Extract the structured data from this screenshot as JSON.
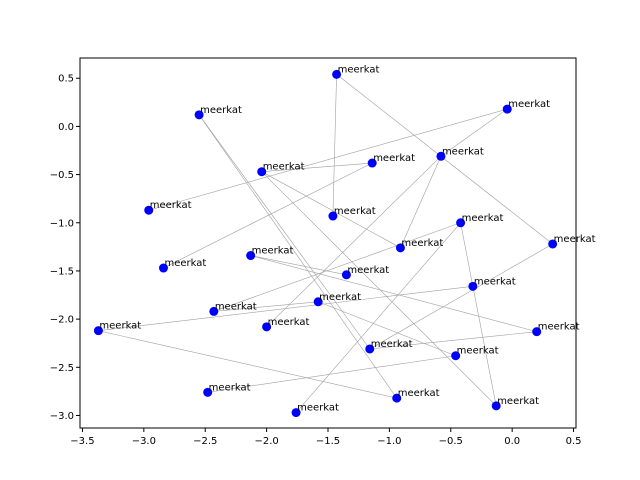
{
  "chart_data": {
    "type": "scatter",
    "title": "",
    "xlabel": "",
    "ylabel": "",
    "xlim": [
      -3.52,
      0.52
    ],
    "ylim": [
      -3.13,
      0.71
    ],
    "grid": false,
    "xticks": [
      -3.5,
      -3.0,
      -2.5,
      -2.0,
      -1.5,
      -1.0,
      -0.5,
      0.0,
      0.5
    ],
    "yticks": [
      -3.0,
      -2.5,
      -2.0,
      -1.5,
      -1.0,
      -0.5,
      0.0,
      0.5
    ],
    "xtick_labels": [
      "−3.5",
      "−3.0",
      "−2.5",
      "−2.0",
      "−1.5",
      "−1.0",
      "−0.5",
      "0.0",
      "0.5"
    ],
    "ytick_labels": [
      "−3.0",
      "−2.5",
      "−2.0",
      "−1.5",
      "−1.0",
      "−0.5",
      "0.0",
      "0.5"
    ],
    "marker_color": "#0000ff",
    "edge_color": "#a0a0a0",
    "points": [
      {
        "x": -1.43,
        "y": 0.54,
        "label": "meerkat"
      },
      {
        "x": -0.04,
        "y": 0.18,
        "label": "meerkat"
      },
      {
        "x": -2.55,
        "y": 0.12,
        "label": "meerkat"
      },
      {
        "x": -0.58,
        "y": -0.31,
        "label": "meerkat"
      },
      {
        "x": -1.14,
        "y": -0.38,
        "label": "meerkat"
      },
      {
        "x": -2.04,
        "y": -0.47,
        "label": "meerkat"
      },
      {
        "x": -2.96,
        "y": -0.87,
        "label": "meerkat"
      },
      {
        "x": -1.46,
        "y": -0.93,
        "label": "meerkat"
      },
      {
        "x": -0.42,
        "y": -1.0,
        "label": "meerkat"
      },
      {
        "x": -0.91,
        "y": -1.26,
        "label": "meerkat"
      },
      {
        "x": 0.33,
        "y": -1.22,
        "label": "meerkat"
      },
      {
        "x": -2.13,
        "y": -1.34,
        "label": "meerkat"
      },
      {
        "x": -2.84,
        "y": -1.47,
        "label": "meerkat"
      },
      {
        "x": -1.35,
        "y": -1.54,
        "label": "meerkat"
      },
      {
        "x": -0.32,
        "y": -1.66,
        "label": "meerkat"
      },
      {
        "x": -1.58,
        "y": -1.82,
        "label": "meerkat"
      },
      {
        "x": -2.43,
        "y": -1.92,
        "label": "meerkat"
      },
      {
        "x": -2.0,
        "y": -2.08,
        "label": "meerkat"
      },
      {
        "x": -3.37,
        "y": -2.12,
        "label": "meerkat"
      },
      {
        "x": 0.2,
        "y": -2.13,
        "label": "meerkat"
      },
      {
        "x": -1.16,
        "y": -2.31,
        "label": "meerkat"
      },
      {
        "x": -0.46,
        "y": -2.38,
        "label": "meerkat"
      },
      {
        "x": -2.48,
        "y": -2.76,
        "label": "meerkat"
      },
      {
        "x": -0.94,
        "y": -2.82,
        "label": "meerkat"
      },
      {
        "x": -0.13,
        "y": -2.9,
        "label": "meerkat"
      },
      {
        "x": -1.76,
        "y": -2.97,
        "label": "meerkat"
      }
    ],
    "edges": [
      [
        0,
        7
      ],
      [
        0,
        10
      ],
      [
        1,
        6
      ],
      [
        1,
        3
      ],
      [
        3,
        9
      ],
      [
        3,
        17
      ],
      [
        2,
        20
      ],
      [
        2,
        23
      ],
      [
        4,
        12
      ],
      [
        4,
        5
      ],
      [
        5,
        9
      ],
      [
        5,
        24
      ],
      [
        8,
        14
      ],
      [
        8,
        16
      ],
      [
        8,
        25
      ],
      [
        14,
        24
      ],
      [
        14,
        18
      ],
      [
        13,
        11
      ],
      [
        11,
        19
      ],
      [
        18,
        23
      ],
      [
        21,
        22
      ],
      [
        20,
        19
      ],
      [
        15,
        16
      ],
      [
        15,
        21
      ],
      [
        10,
        20
      ]
    ]
  }
}
